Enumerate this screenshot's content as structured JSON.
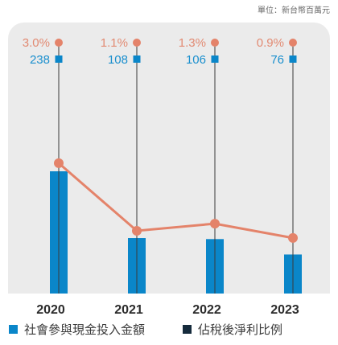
{
  "unit_label": "單位：新台幣百萬元",
  "colors": {
    "panel": "#ebebeb",
    "bar": "#0a86c9",
    "line": "#e4836a",
    "pct_text": "#e28a72",
    "amt_text": "#1a8fce",
    "stem": "#3a3a3a",
    "legend_dark": "#152b3c"
  },
  "chart_data": {
    "type": "bar",
    "categories": [
      "2020",
      "2021",
      "2022",
      "2023"
    ],
    "series": [
      {
        "name": "社會參與現金投入金額",
        "type": "bar",
        "values": [
          238,
          108,
          106,
          76
        ],
        "labels": [
          "238",
          "108",
          "106",
          "76"
        ]
      },
      {
        "name": "佔稅後淨利比例",
        "type": "line",
        "values": [
          3.0,
          1.1,
          1.3,
          0.9
        ],
        "labels": [
          "3.0%",
          "1.1%",
          "1.3%",
          "0.9%"
        ]
      }
    ],
    "legend": [
      "社會參與現金投入金額",
      "佔稅後淨利比例"
    ],
    "legend_position": "bottom",
    "grid": false
  }
}
